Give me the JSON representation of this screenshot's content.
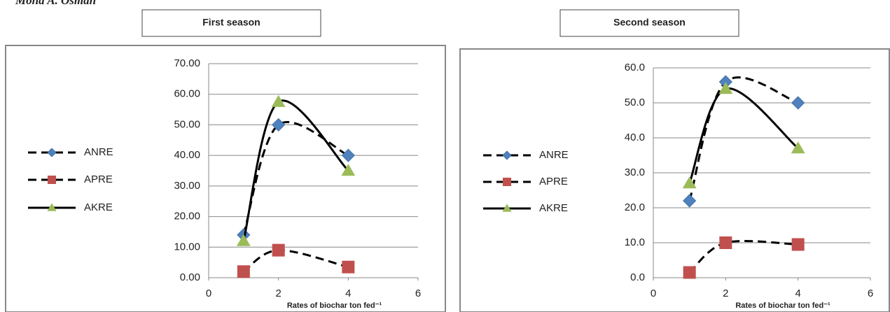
{
  "header": {
    "author": "Mona A. Osman"
  },
  "chart_data": [
    {
      "type": "line",
      "title": "First season",
      "x_label": "Rates of biochar ton fed⁻¹",
      "x": [
        1,
        2,
        4
      ],
      "xlim": [
        0,
        6
      ],
      "xticks": [
        0,
        2,
        4,
        6
      ],
      "ylim": [
        0,
        70
      ],
      "yticks": [
        {
          "value": 0,
          "label": "0.00"
        },
        {
          "value": 10,
          "label": "10.00"
        },
        {
          "value": 20,
          "label": "20.00"
        },
        {
          "value": 30,
          "label": "30.00"
        },
        {
          "value": 40,
          "label": "40.00"
        },
        {
          "value": 50,
          "label": "50.00"
        },
        {
          "value": 60,
          "label": "60.00"
        },
        {
          "value": 70,
          "label": "70.00"
        }
      ],
      "grid": true,
      "legend": "left",
      "series": [
        {
          "name": "ANRE",
          "color": "#4f81bd",
          "marker": "diamond",
          "line": "dashed",
          "values": [
            14,
            50,
            40
          ]
        },
        {
          "name": "APRE",
          "color": "#c0504d",
          "marker": "square",
          "line": "dashed",
          "values": [
            2,
            9,
            3.5
          ]
        },
        {
          "name": "AKRE",
          "color": "#9bbb59",
          "marker": "triangle",
          "line": "solid",
          "values": [
            12,
            57.5,
            35
          ]
        }
      ]
    },
    {
      "type": "line",
      "title": "Second season",
      "x_label": "Rates of biochar ton fed⁻¹",
      "x": [
        1,
        2,
        4
      ],
      "xlim": [
        0,
        6
      ],
      "xticks": [
        0,
        2,
        4,
        6
      ],
      "ylim": [
        0,
        60
      ],
      "yticks": [
        {
          "value": 0,
          "label": "0.0"
        },
        {
          "value": 10,
          "label": "10.0"
        },
        {
          "value": 20,
          "label": "20.0"
        },
        {
          "value": 30,
          "label": "30.0"
        },
        {
          "value": 40,
          "label": "40.0"
        },
        {
          "value": 50,
          "label": "50.0"
        },
        {
          "value": 60,
          "label": "60.0"
        }
      ],
      "grid": true,
      "legend": "left",
      "series": [
        {
          "name": "ANRE",
          "color": "#4f81bd",
          "marker": "diamond",
          "line": "dashed",
          "values": [
            22,
            56,
            50
          ]
        },
        {
          "name": "APRE",
          "color": "#c0504d",
          "marker": "square",
          "line": "dashed",
          "values": [
            1.5,
            10,
            9.5
          ]
        },
        {
          "name": "AKRE",
          "color": "#9bbb59",
          "marker": "triangle",
          "line": "solid",
          "values": [
            27,
            54,
            37
          ]
        }
      ]
    }
  ]
}
